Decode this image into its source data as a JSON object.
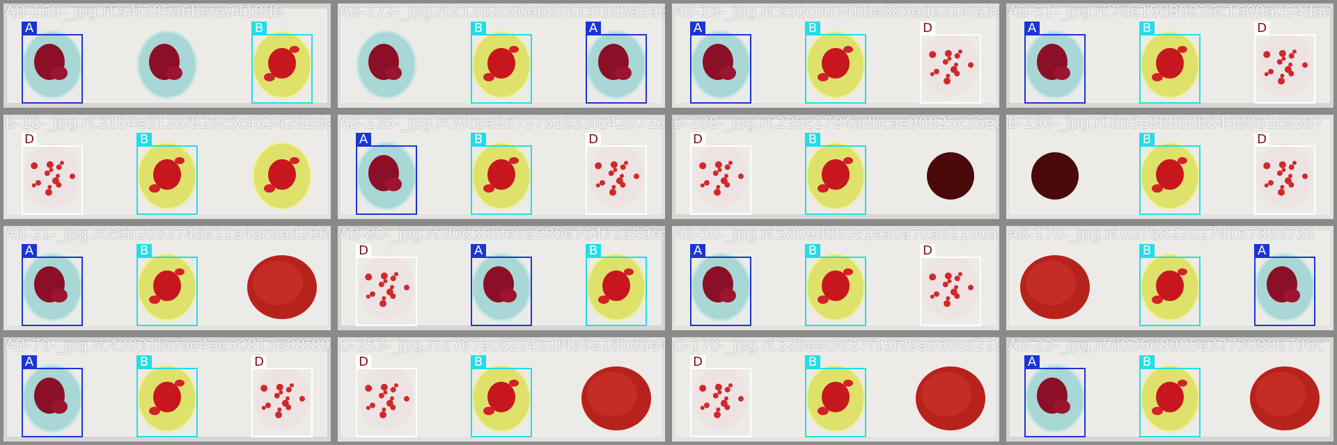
{
  "legend_colors": {
    "A": "#1a34d6",
    "B": "#22dde8",
    "D": "#ffffff"
  },
  "tiles": [
    {
      "title": "AB-169-_jpg.rf.a4f395a6befe0419d6",
      "scene": "AAB",
      "detections": [
        {
          "cls": "A"
        },
        {
          "cls": "B"
        }
      ]
    },
    {
      "title": "AB-172-_jpg.rf.c1302cd0eb85615f1dba5a8c",
      "scene": "ABA",
      "detections": [
        {
          "cls": "B"
        },
        {
          "cls": "A"
        }
      ]
    },
    {
      "title": "AB-19-_jpg.rf.350c00340be889ed6314fa3e",
      "scene": "ABD",
      "detections": [
        {
          "cls": "A"
        },
        {
          "cls": "B"
        },
        {
          "cls": "D"
        }
      ]
    },
    {
      "title": "AB-51-_jpg.rf.7da19d89836c1609a054dae",
      "scene": "ABD",
      "detections": [
        {
          "cls": "A"
        },
        {
          "cls": "B"
        },
        {
          "cls": "D"
        }
      ]
    },
    {
      "title": "B-18-_jpg.rf.3104e3136f926c5c4634292dd2",
      "scene": "DBB",
      "detections": [
        {
          "cls": "D"
        },
        {
          "cls": "B"
        }
      ]
    },
    {
      "title": "AB-135-_jpg.rf.9fcba9d75761633fd42071680",
      "scene": "ABD",
      "detections": [
        {
          "cls": "A"
        },
        {
          "cls": "B"
        },
        {
          "cls": "D"
        }
      ]
    },
    {
      "title": "B-108-_jpg.rf.235c1784adbcae90825c36e8",
      "scene": "DBX",
      "detections": [
        {
          "cls": "D"
        },
        {
          "cls": "B"
        }
      ]
    },
    {
      "title": "B-196-_jpg.rf.6b3e8b8b8b84d80b1c93d7",
      "scene": "XBD",
      "detections": [
        {
          "cls": "B"
        },
        {
          "cls": "D"
        }
      ]
    },
    {
      "title": "AB-21-_jpg.rf.c6b203374da11a4acbed266a",
      "scene": "ABO",
      "detections": [
        {
          "cls": "A"
        },
        {
          "cls": "B"
        }
      ]
    },
    {
      "title": "AB-80-_jpg.rf.d0d36bfe9a580e76471a59ea",
      "scene": "DAB",
      "detections": [
        {
          "cls": "D"
        },
        {
          "cls": "A"
        },
        {
          "cls": "B"
        }
      ]
    },
    {
      "title": "AB-50-_jpg.rf.5809d0b2c1ea0a70ad1100ac",
      "scene": "ABD",
      "detections": [
        {
          "cls": "A"
        },
        {
          "cls": "B"
        },
        {
          "cls": "D"
        }
      ]
    },
    {
      "title": "AB-170-_jpg.rf.037b82202741678b3731",
      "scene": "OBA",
      "detections": [
        {
          "cls": "B"
        },
        {
          "cls": "A"
        }
      ]
    },
    {
      "title": "AB-79-_jpg.rf.43031bcfae4ae50813e98f89",
      "scene": "ABD",
      "detections": [
        {
          "cls": "A"
        },
        {
          "cls": "B"
        },
        {
          "cls": "D"
        }
      ]
    },
    {
      "title": "D-153-_jpg.rf.c767ac8224b1f4a9a18bd6e4",
      "scene": "DBO",
      "detections": [
        {
          "cls": "D"
        },
        {
          "cls": "B"
        }
      ]
    },
    {
      "title": "D-170-_jpg.rf.32beecfd37f15f99a560cd218",
      "scene": "DBO",
      "detections": [
        {
          "cls": "D"
        },
        {
          "cls": "B"
        }
      ]
    },
    {
      "title": "AB-23-_jpg.rf.d036d8905e3273088b796c",
      "scene": "ABO",
      "detections": [
        {
          "cls": "A"
        },
        {
          "cls": "B"
        }
      ]
    }
  ]
}
